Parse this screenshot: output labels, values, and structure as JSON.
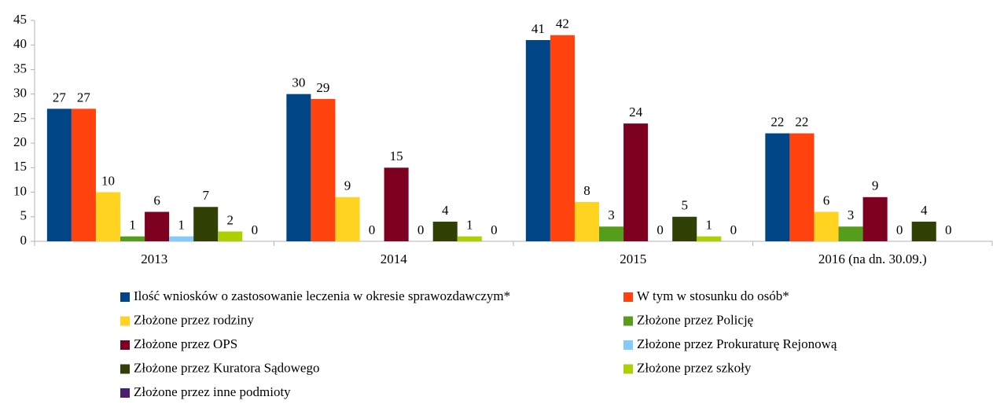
{
  "chart_data": {
    "type": "bar",
    "categories": [
      "2013",
      "2014",
      "2015",
      "2016 (na dn. 30.09.)"
    ],
    "series": [
      {
        "name": "Ilość wniosków o zastosowanie leczenia w okresie sprawozdawczym*",
        "color": "#004586",
        "values": [
          27,
          30,
          41,
          22
        ]
      },
      {
        "name": "W tym w stosunku do osób*",
        "color": "#ff420e",
        "values": [
          27,
          29,
          42,
          22
        ]
      },
      {
        "name": "Złożone przez rodziny",
        "color": "#ffd320",
        "values": [
          10,
          9,
          8,
          6
        ]
      },
      {
        "name": "Złożone przez Policję",
        "color": "#579d1c",
        "values": [
          1,
          0,
          3,
          3
        ]
      },
      {
        "name": "Złożone przez OPS",
        "color": "#7e0021",
        "values": [
          6,
          15,
          24,
          9
        ]
      },
      {
        "name": "Złożone przez Prokuraturę Rejonową",
        "color": "#83caff",
        "values": [
          1,
          0,
          0,
          0
        ]
      },
      {
        "name": "Złożone przez Kuratora Sądowego",
        "color": "#314004",
        "values": [
          7,
          4,
          5,
          4
        ]
      },
      {
        "name": "Złożone przez szkoły",
        "color": "#aecf00",
        "values": [
          2,
          1,
          1,
          0
        ]
      },
      {
        "name": "Złożone przez inne podmioty",
        "color": "#4b1f6f",
        "values": [
          0,
          0,
          0,
          null
        ]
      }
    ],
    "ylim": [
      0,
      45
    ],
    "yticks": [
      0,
      5,
      10,
      15,
      20,
      25,
      30,
      35,
      40,
      45
    ],
    "grid": false,
    "legend": "bottom"
  }
}
